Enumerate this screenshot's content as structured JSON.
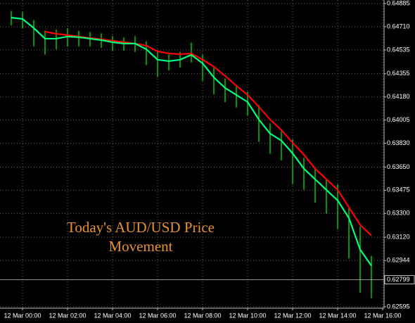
{
  "chart_data": {
    "type": "ohlc",
    "title": [
      "Today's AUD/USD Price",
      "Movement"
    ],
    "categories": [
      null,
      "12 Mar 00:00",
      null,
      null,
      null,
      "12 Mar 02:00",
      null,
      null,
      null,
      "12 Mar 04:00",
      null,
      null,
      null,
      "12 Mar 06:00",
      null,
      null,
      null,
      "12 Mar 08:00",
      null,
      null,
      null,
      "12 Mar 10:00",
      null,
      null,
      null,
      "12 Mar 12:00",
      null,
      null,
      null,
      "12 Mar 14:00",
      null,
      null,
      null,
      "12 Mar 16:00"
    ],
    "high": [
      0.6483,
      0.6482,
      0.6476,
      0.6468,
      0.6469,
      0.647,
      0.6468,
      0.6467,
      0.6466,
      0.6464,
      0.6463,
      0.6464,
      0.646,
      0.6452,
      0.645,
      0.6452,
      0.6459,
      0.645,
      0.644,
      0.6432,
      0.6426,
      0.6422,
      0.6412,
      0.6398,
      0.6392,
      0.6386,
      0.6372,
      0.6364,
      0.6356,
      0.6352,
      0.6334,
      0.632,
      0.6298,
      null
    ],
    "low": [
      0.6472,
      0.647,
      0.6456,
      0.645,
      0.6454,
      0.6456,
      0.6456,
      0.6456,
      0.6455,
      0.6453,
      0.6453,
      0.6452,
      0.6442,
      0.6433,
      0.6438,
      0.644,
      0.6444,
      0.643,
      0.642,
      0.6414,
      0.641,
      0.6404,
      0.6384,
      0.6375,
      0.637,
      0.6352,
      0.6348,
      0.6338,
      0.633,
      0.6318,
      0.6296,
      0.627,
      0.6266,
      null
    ],
    "bar_color": "#00c800",
    "series": [
      {
        "color": "#ff0000",
        "values": [
          null,
          null,
          null,
          0.64673,
          0.64657,
          0.64647,
          0.64636,
          0.64625,
          0.64615,
          0.64604,
          0.64593,
          0.64583,
          0.64567,
          0.64524,
          0.64508,
          0.64503,
          0.64508,
          0.64461,
          0.64408,
          0.64339,
          0.64264,
          0.64195,
          0.64105,
          0.64009,
          0.6393,
          0.63834,
          0.63744,
          0.63638,
          0.63558,
          0.63478,
          0.63346,
          0.63213,
          0.63133,
          null
        ]
      },
      {
        "color": "#00ff7f",
        "values": [
          0.64779,
          0.64769,
          0.647,
          0.6462,
          0.6462,
          0.64636,
          0.64631,
          0.6462,
          0.64609,
          0.64593,
          0.64583,
          0.64583,
          0.6454,
          0.64461,
          0.6445,
          0.64461,
          0.64498,
          0.64434,
          0.64328,
          0.64248,
          0.64195,
          0.64142,
          0.64009,
          0.63903,
          0.6385,
          0.63754,
          0.63638,
          0.63558,
          0.63478,
          0.63399,
          0.63266,
          0.63027,
          0.62905,
          null
        ]
      }
    ],
    "ylim": [
      0.62584,
      0.64912
    ],
    "yticks": [
      0.64885,
      {
        "value": 0.6471,
        "label": "0.64710"
      },
      0.64535,
      0.64355,
      {
        "value": 0.6418,
        "label": "0.64180"
      },
      0.64005,
      {
        "value": 0.6383,
        "label": "0.63830"
      },
      {
        "value": 0.6365,
        "label": "0.63650"
      },
      0.63475,
      {
        "value": 0.633,
        "label": "0.63300"
      },
      {
        "value": 0.6312,
        "label": "0.63120"
      },
      0.62944,
      0.62595
    ],
    "last_price": 0.62799,
    "grid": true
  }
}
